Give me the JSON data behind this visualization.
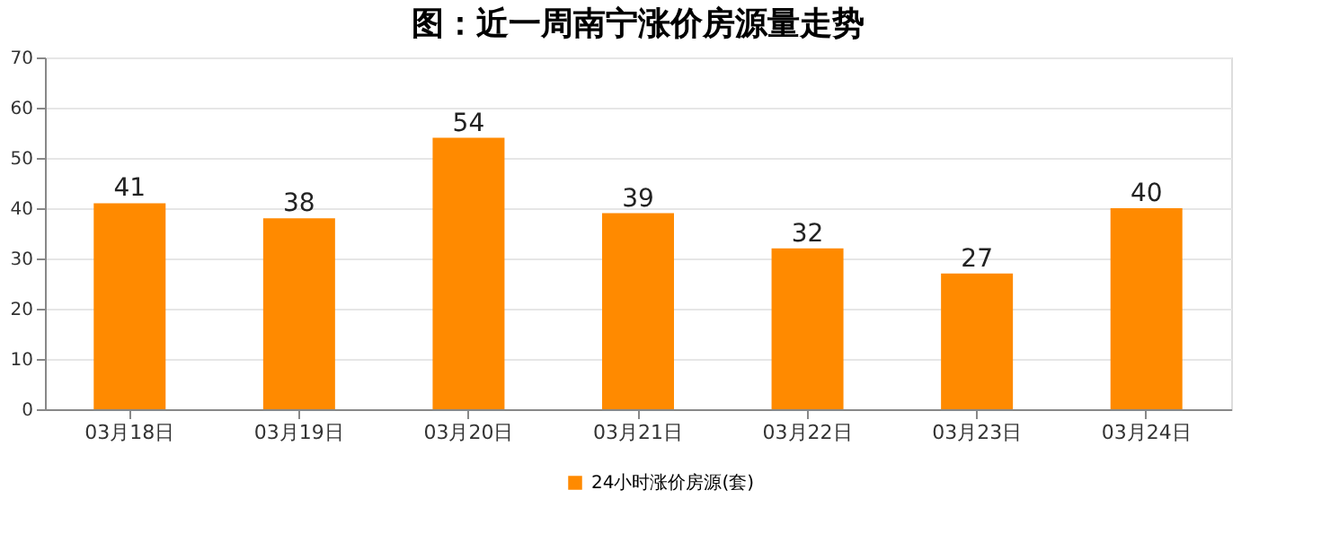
{
  "chart_data": {
    "type": "bar",
    "title": "图：近一周南宁涨价房源量走势",
    "categories": [
      "03月18日",
      "03月19日",
      "03月20日",
      "03月21日",
      "03月22日",
      "03月23日",
      "03月24日"
    ],
    "series": [
      {
        "name": "24小时涨价房源(套)",
        "color": "#ff8a00",
        "values": [
          41,
          38,
          54,
          39,
          32,
          27,
          40
        ]
      }
    ],
    "ylim": [
      0,
      70
    ],
    "yticks": [
      0,
      10,
      20,
      30,
      40,
      50,
      60,
      70
    ],
    "grid": "y",
    "legend": "bottom",
    "data_labels": true
  }
}
